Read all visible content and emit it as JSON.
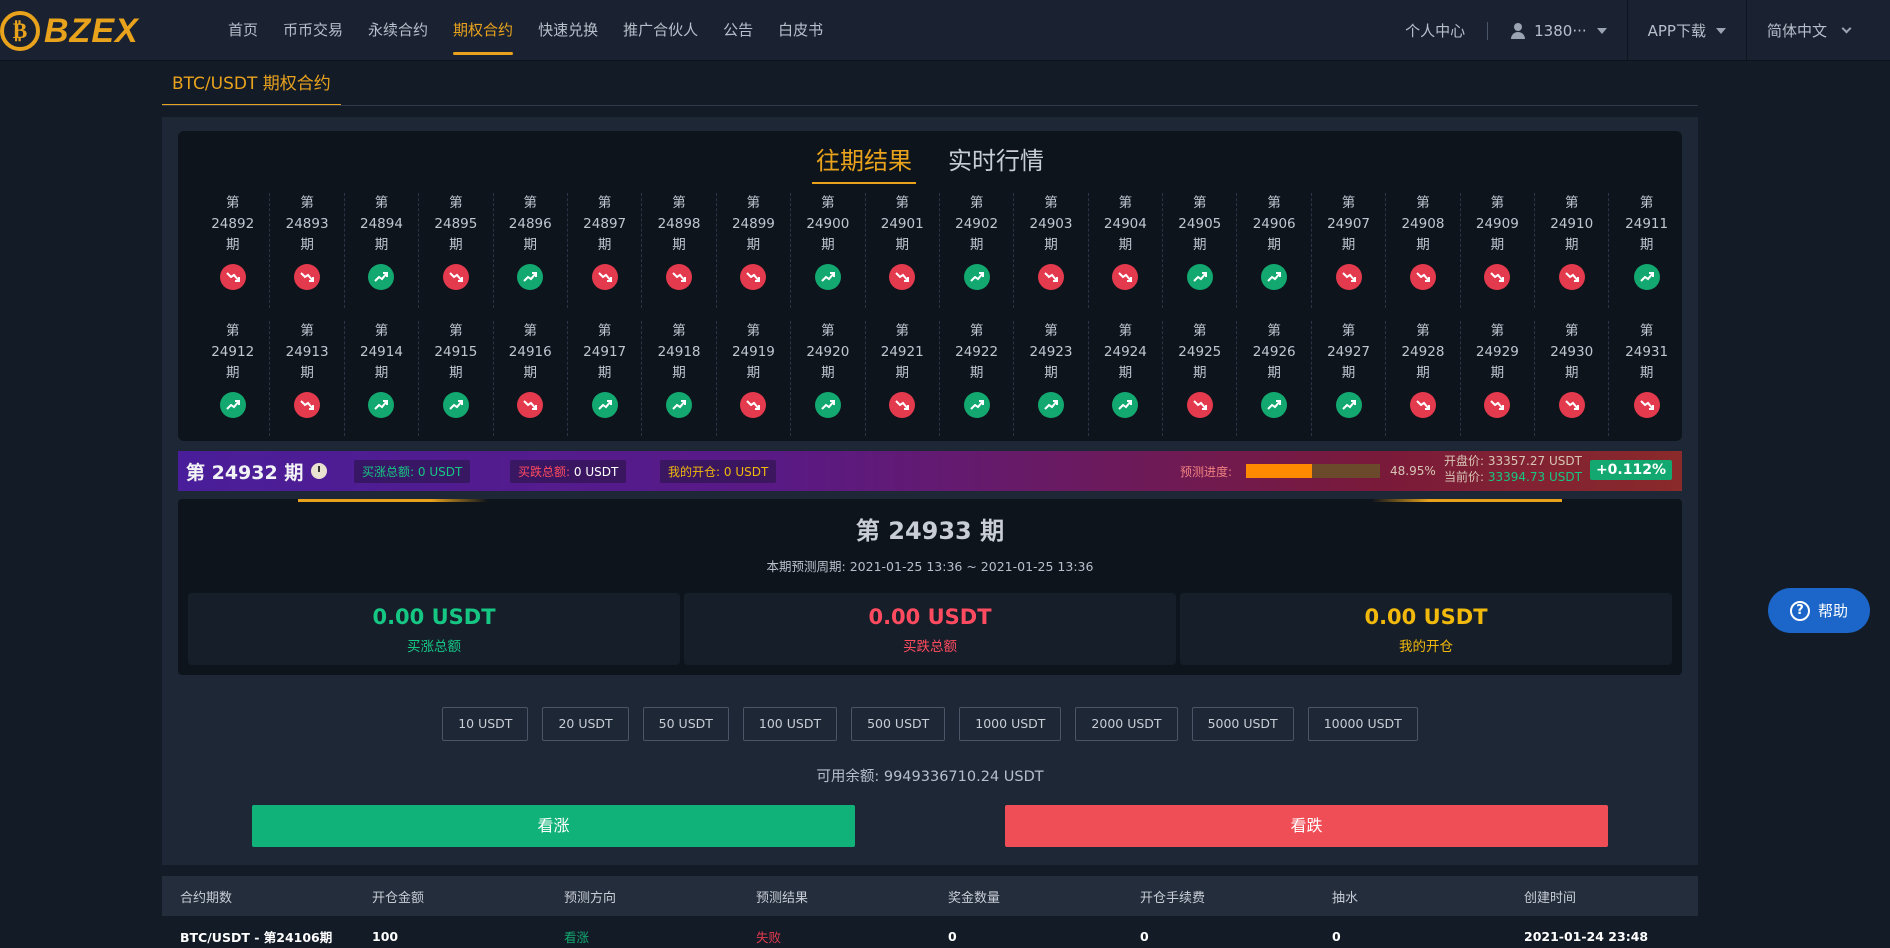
{
  "brand": {
    "name": "BZEX",
    "coin_glyph": "₿",
    "accent": "#e8a21c"
  },
  "nav": {
    "items": [
      {
        "label": "首页",
        "active": false
      },
      {
        "label": "币币交易",
        "active": false
      },
      {
        "label": "永续合约",
        "active": false
      },
      {
        "label": "期权合约",
        "active": true
      },
      {
        "label": "快速兑换",
        "active": false
      },
      {
        "label": "推广合伙人",
        "active": false
      },
      {
        "label": "公告",
        "active": false
      },
      {
        "label": "白皮书",
        "active": false
      }
    ],
    "personal_center": "个人中心",
    "user": "1380···",
    "app_download": "APP下载",
    "language": "简体中文"
  },
  "contract_tab": "BTC/USDT 期权合约",
  "history": {
    "tabs": [
      {
        "label": "往期结果",
        "active": true
      },
      {
        "label": "实时行情",
        "active": false
      }
    ],
    "prefix": "第",
    "suffix": "期",
    "rows": [
      [
        {
          "n": "24892",
          "t": "down"
        },
        {
          "n": "24893",
          "t": "down"
        },
        {
          "n": "24894",
          "t": "up"
        },
        {
          "n": "24895",
          "t": "down"
        },
        {
          "n": "24896",
          "t": "up"
        },
        {
          "n": "24897",
          "t": "down"
        },
        {
          "n": "24898",
          "t": "down"
        },
        {
          "n": "24899",
          "t": "down"
        },
        {
          "n": "24900",
          "t": "up"
        },
        {
          "n": "24901",
          "t": "down"
        },
        {
          "n": "24902",
          "t": "up"
        },
        {
          "n": "24903",
          "t": "down"
        },
        {
          "n": "24904",
          "t": "down"
        },
        {
          "n": "24905",
          "t": "up"
        },
        {
          "n": "24906",
          "t": "up"
        },
        {
          "n": "24907",
          "t": "down"
        },
        {
          "n": "24908",
          "t": "down"
        },
        {
          "n": "24909",
          "t": "down"
        },
        {
          "n": "24910",
          "t": "down"
        },
        {
          "n": "24911",
          "t": "up"
        }
      ],
      [
        {
          "n": "24912",
          "t": "up"
        },
        {
          "n": "24913",
          "t": "down"
        },
        {
          "n": "24914",
          "t": "up"
        },
        {
          "n": "24915",
          "t": "up"
        },
        {
          "n": "24916",
          "t": "down"
        },
        {
          "n": "24917",
          "t": "up"
        },
        {
          "n": "24918",
          "t": "up"
        },
        {
          "n": "24919",
          "t": "down"
        },
        {
          "n": "24920",
          "t": "up"
        },
        {
          "n": "24921",
          "t": "down"
        },
        {
          "n": "24922",
          "t": "up"
        },
        {
          "n": "24923",
          "t": "up"
        },
        {
          "n": "24924",
          "t": "up"
        },
        {
          "n": "24925",
          "t": "down"
        },
        {
          "n": "24926",
          "t": "up"
        },
        {
          "n": "24927",
          "t": "up"
        },
        {
          "n": "24928",
          "t": "down"
        },
        {
          "n": "24929",
          "t": "down"
        },
        {
          "n": "24930",
          "t": "down"
        },
        {
          "n": "24931",
          "t": "down"
        }
      ]
    ]
  },
  "status_bar": {
    "period": "第 24932 期",
    "buy_up_total_label": "买涨总额:",
    "buy_up_total": "0 USDT",
    "buy_down_total_label": "买跌总额:",
    "buy_down_total": "0 USDT",
    "my_position_label": "我的开仓:",
    "my_position": "0 USDT",
    "progress_label": "预测进度:",
    "progress_percent": 48.95,
    "progress_text": "48.95%",
    "open_price_label": "开盘价:",
    "open_price": "33357.27 USDT",
    "current_price_label": "当前价:",
    "current_price": "33394.73 USDT",
    "change": "+0.112%"
  },
  "current_period": {
    "title": "第 24933 期",
    "range": "本期预测周期: 2021-01-25 13:36 ~ 2021-01-25 13:36",
    "totals": [
      {
        "value": "0.00 USDT",
        "label": "买涨总额",
        "tone": "green"
      },
      {
        "value": "0.00 USDT",
        "label": "买跌总额",
        "tone": "red"
      },
      {
        "value": "0.00 USDT",
        "label": "我的开仓",
        "tone": "gold"
      }
    ]
  },
  "amounts": [
    "10 USDT",
    "20 USDT",
    "50 USDT",
    "100 USDT",
    "500 USDT",
    "1000 USDT",
    "2000 USDT",
    "5000 USDT",
    "10000 USDT"
  ],
  "balance": "可用余额: 9949336710.24 USDT",
  "actions": {
    "up": "看涨",
    "down": "看跌"
  },
  "table": {
    "headers": [
      "合约期数",
      "开仓金额",
      "预测方向",
      "预测结果",
      "奖金数量",
      "开仓手续费",
      "抽水",
      "创建时间"
    ],
    "rows": [
      [
        "BTC/USDT - 第24106期",
        "100",
        "看涨",
        "失败",
        "0",
        "0",
        "0",
        "2021-01-24 23:48"
      ]
    ]
  },
  "help": "帮助",
  "colors": {
    "up": "#12a870",
    "down": "#e33a4e",
    "gold": "#f0b90b"
  }
}
